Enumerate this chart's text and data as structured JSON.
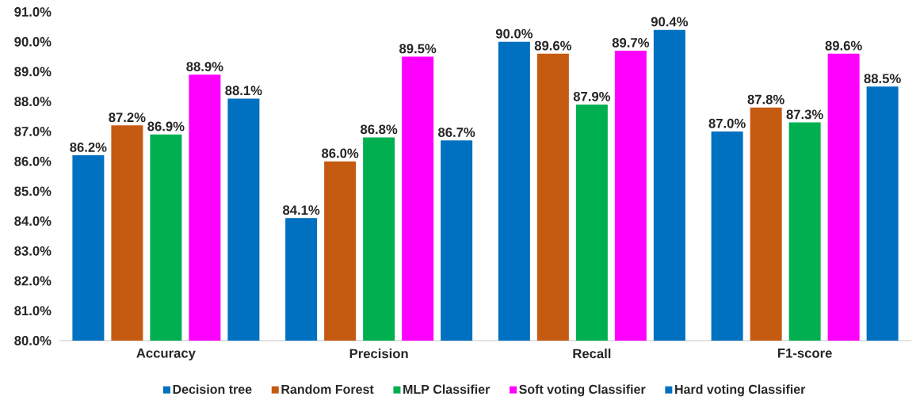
{
  "chart_data": {
    "type": "bar",
    "categories": [
      "Accuracy",
      "Precision",
      "Recall",
      "F1-score"
    ],
    "series": [
      {
        "name": "Decision tree",
        "color": "#0070c0",
        "values": [
          86.2,
          84.1,
          90.0,
          87.0
        ],
        "value_labels": [
          "86.2%",
          "84.1%",
          "90.0%",
          "87.0%"
        ]
      },
      {
        "name": "Random Forest",
        "color": "#c55a11",
        "values": [
          87.2,
          86.0,
          89.6,
          87.8
        ],
        "value_labels": [
          "87.2%",
          "86.0%",
          "89.6%",
          "87.8%"
        ]
      },
      {
        "name": "MLP Classifier",
        "color": "#00b050",
        "values": [
          86.9,
          86.8,
          87.9,
          87.3
        ],
        "value_labels": [
          "86.9%",
          "86.8%",
          "87.9%",
          "87.3%"
        ]
      },
      {
        "name": "Soft voting Classifier",
        "color": "#ff00ff",
        "values": [
          88.9,
          89.5,
          89.7,
          89.6
        ],
        "value_labels": [
          "88.9%",
          "89.5%",
          "89.7%",
          "89.6%"
        ]
      },
      {
        "name": "Hard voting Classifier",
        "color": "#0070c0",
        "values": [
          88.1,
          86.7,
          90.4,
          88.5
        ],
        "value_labels": [
          "88.1%",
          "86.7%",
          "90.4%",
          "88.5%"
        ]
      }
    ],
    "ylim": [
      80,
      91
    ],
    "yticks": [
      {
        "value": 80,
        "label": "80.0%"
      },
      {
        "value": 81,
        "label": "81.0%"
      },
      {
        "value": 82,
        "label": "82.0%"
      },
      {
        "value": 83,
        "label": "83.0%"
      },
      {
        "value": 84,
        "label": "84.0%"
      },
      {
        "value": 85,
        "label": "85.0%"
      },
      {
        "value": 86,
        "label": "86.0%"
      },
      {
        "value": 87,
        "label": "87.0%"
      },
      {
        "value": 88,
        "label": "88.0%"
      },
      {
        "value": 89,
        "label": "89.0%"
      },
      {
        "value": 90,
        "label": "90.0%"
      },
      {
        "value": 91,
        "label": "91.0%"
      }
    ],
    "legend": "bottom"
  }
}
